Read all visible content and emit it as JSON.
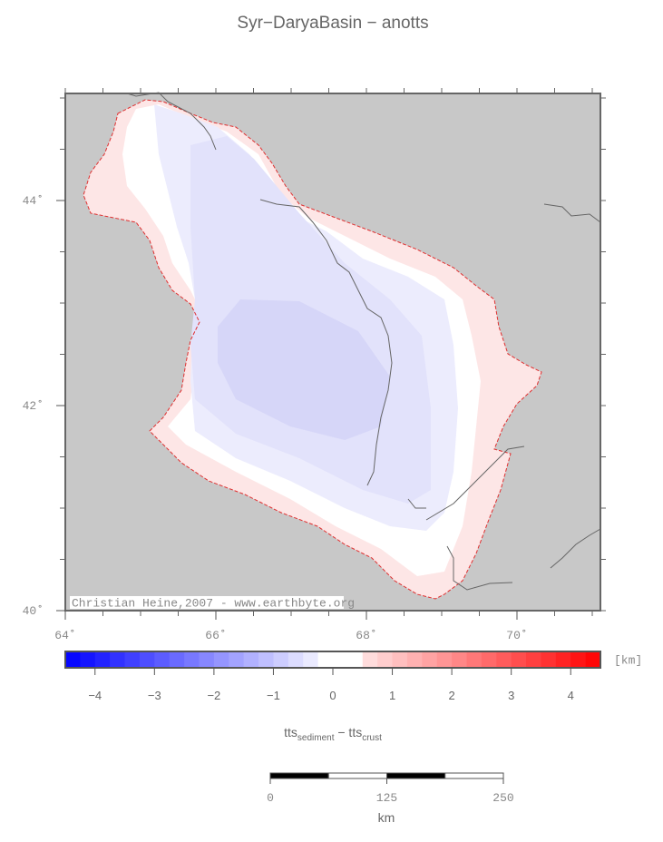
{
  "title": "Syr−DaryaBasin − anotts",
  "map": {
    "lon_ticks": [
      {
        "value": 64,
        "label": "64˚"
      },
      {
        "value": 66,
        "label": "66˚"
      },
      {
        "value": 68,
        "label": "68˚"
      },
      {
        "value": 70,
        "label": "70˚"
      }
    ],
    "lat_ticks": [
      {
        "value": 40,
        "label": "40˚"
      },
      {
        "value": 42,
        "label": "42˚"
      },
      {
        "value": 44,
        "label": "44˚"
      }
    ],
    "credit": "Christian Heine,2007 - www.earthbyte.org"
  },
  "colorbar": {
    "unit": "[km]",
    "ticks": [
      {
        "value": -4,
        "label": "−4"
      },
      {
        "value": -3,
        "label": "−3"
      },
      {
        "value": -2,
        "label": "−2"
      },
      {
        "value": -1,
        "label": "−1"
      },
      0,
      1,
      2,
      3,
      4
    ],
    "label": [
      {
        "text": "tts",
        "sub": false
      },
      {
        "text": "sediment",
        "sub": true
      },
      {
        "text": " − tts",
        "sub": false
      },
      {
        "text": "crust",
        "sub": true
      }
    ]
  },
  "scale_bar": {
    "ticks": [
      0,
      125,
      250
    ],
    "unit": "km"
  }
}
